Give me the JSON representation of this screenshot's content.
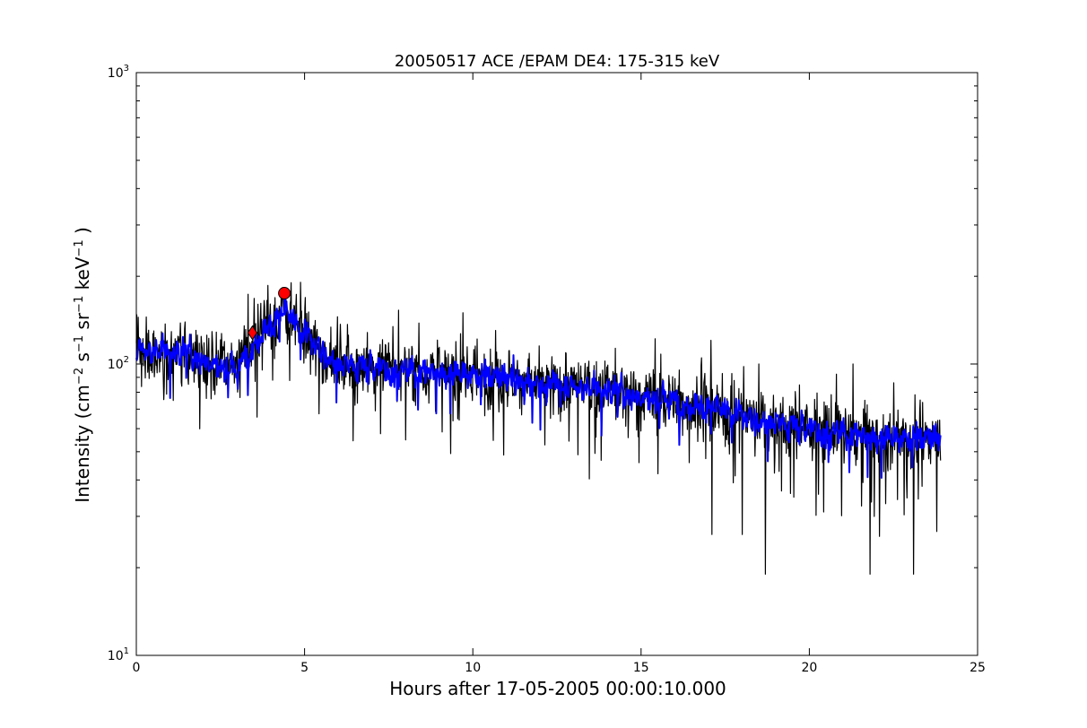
{
  "chart_data": {
    "type": "line",
    "title": "20050517 ACE /EPAM DE4: 175-315 keV",
    "xlabel": "Hours after 17-05-2005 00:00:10.000",
    "ylabel_parts": {
      "prefix": "Intensity (cm",
      "sup1": "−2",
      "s": " s",
      "sup2": "−1",
      "sr": " sr",
      "sup3": "−1",
      "kev": " keV",
      "sup4": "−1",
      "close": " )"
    },
    "xlim": [
      0,
      25
    ],
    "ylim": [
      10,
      1000
    ],
    "yscale": "log",
    "grid": false,
    "x_ticks": [
      {
        "value": 0,
        "label": "0"
      },
      {
        "value": 5,
        "label": "5"
      },
      {
        "value": 10,
        "label": "10"
      },
      {
        "value": 15,
        "label": "15"
      },
      {
        "value": 20,
        "label": "20"
      },
      {
        "value": 25,
        "label": "25"
      }
    ],
    "y_ticks": [
      {
        "value": 10,
        "base": "10",
        "exp": "1"
      },
      {
        "value": 100,
        "base": "10",
        "exp": "2"
      },
      {
        "value": 1000,
        "base": "10",
        "exp": "3"
      }
    ],
    "series": [
      {
        "style": "raw",
        "color": "#000000",
        "x_range": [
          0,
          23.9
        ],
        "trend": [
          [
            0,
            112
          ],
          [
            1.5,
            110
          ],
          [
            3.0,
            95
          ],
          [
            3.5,
            120
          ],
          [
            4.4,
            150
          ],
          [
            5.0,
            125
          ],
          [
            6.0,
            100
          ],
          [
            8.0,
            95
          ],
          [
            10.0,
            92
          ],
          [
            12.0,
            85
          ],
          [
            14.0,
            82
          ],
          [
            16.0,
            75
          ],
          [
            18.0,
            66
          ],
          [
            20.0,
            60
          ],
          [
            22.0,
            56
          ],
          [
            23.9,
            55
          ]
        ],
        "notable_points": [
          [
            0.3,
            145
          ],
          [
            3.5,
            168
          ],
          [
            4.6,
            190
          ],
          [
            9.7,
            150
          ],
          [
            18.7,
            19
          ],
          [
            21.8,
            19
          ],
          [
            23.1,
            19
          ],
          [
            17.1,
            26
          ],
          [
            18.0,
            26
          ],
          [
            16.8,
            105
          ],
          [
            18.5,
            100
          ],
          [
            21.3,
            100
          ]
        ]
      },
      {
        "style": "smoothed",
        "color": "#0000ff",
        "x_range": [
          0,
          23.9
        ],
        "trend": [
          [
            0,
            112
          ],
          [
            1.5,
            110
          ],
          [
            3.0,
            95
          ],
          [
            3.5,
            120
          ],
          [
            4.4,
            150
          ],
          [
            5.0,
            125
          ],
          [
            6.0,
            100
          ],
          [
            8.0,
            95
          ],
          [
            10.0,
            92
          ],
          [
            12.0,
            85
          ],
          [
            14.0,
            82
          ],
          [
            16.0,
            75
          ],
          [
            18.0,
            66
          ],
          [
            20.0,
            60
          ],
          [
            22.0,
            56
          ],
          [
            23.9,
            55
          ]
        ]
      }
    ],
    "markers": [
      {
        "shape": "diamond",
        "x": 3.45,
        "y": 128,
        "color": "#ff0000"
      },
      {
        "shape": "circle",
        "x": 4.4,
        "y": 175,
        "color": "#ff0000"
      }
    ]
  }
}
